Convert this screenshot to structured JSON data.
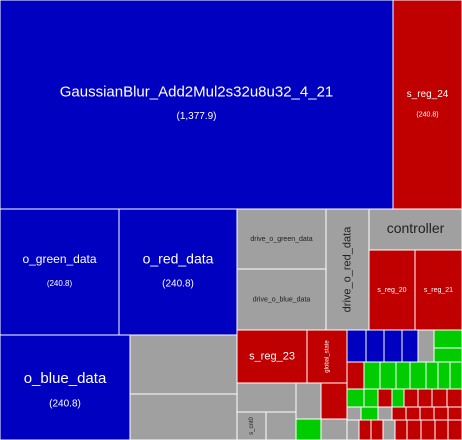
{
  "chart_data": {
    "type": "treemap",
    "colors": {
      "blue": "#0000c0",
      "red": "#c00000",
      "gray": "#a0a0a0",
      "green": "#00cc00"
    },
    "cells": [
      {
        "name": "GaussianBlur_Add2Mul2s32u8u32_4_21",
        "value": "(1,377.9)",
        "color": "blue"
      },
      {
        "name": "s_reg_24",
        "value": "(240.8)",
        "color": "red"
      },
      {
        "name": "o_green_data",
        "value": "(240.8)",
        "color": "blue"
      },
      {
        "name": "o_red_data",
        "value": "(240.8)",
        "color": "blue"
      },
      {
        "name": "drive_o_green_data",
        "value": "",
        "color": "gray"
      },
      {
        "name": "drive_o_blue_data",
        "value": "",
        "color": "gray"
      },
      {
        "name": "drive_o_red_data",
        "value": "",
        "color": "gray"
      },
      {
        "name": "controller",
        "value": "",
        "color": "gray"
      },
      {
        "name": "s_reg_20",
        "value": "",
        "color": "red"
      },
      {
        "name": "s_reg_21",
        "value": "",
        "color": "red"
      },
      {
        "name": "o_blue_data",
        "value": "(240.8)",
        "color": "blue"
      },
      {
        "name": "s_reg_23",
        "value": "",
        "color": "red"
      },
      {
        "name": "global_state",
        "value": "",
        "color": "red"
      },
      {
        "name": "s_cnt0",
        "value": "",
        "color": "gray"
      }
    ]
  }
}
